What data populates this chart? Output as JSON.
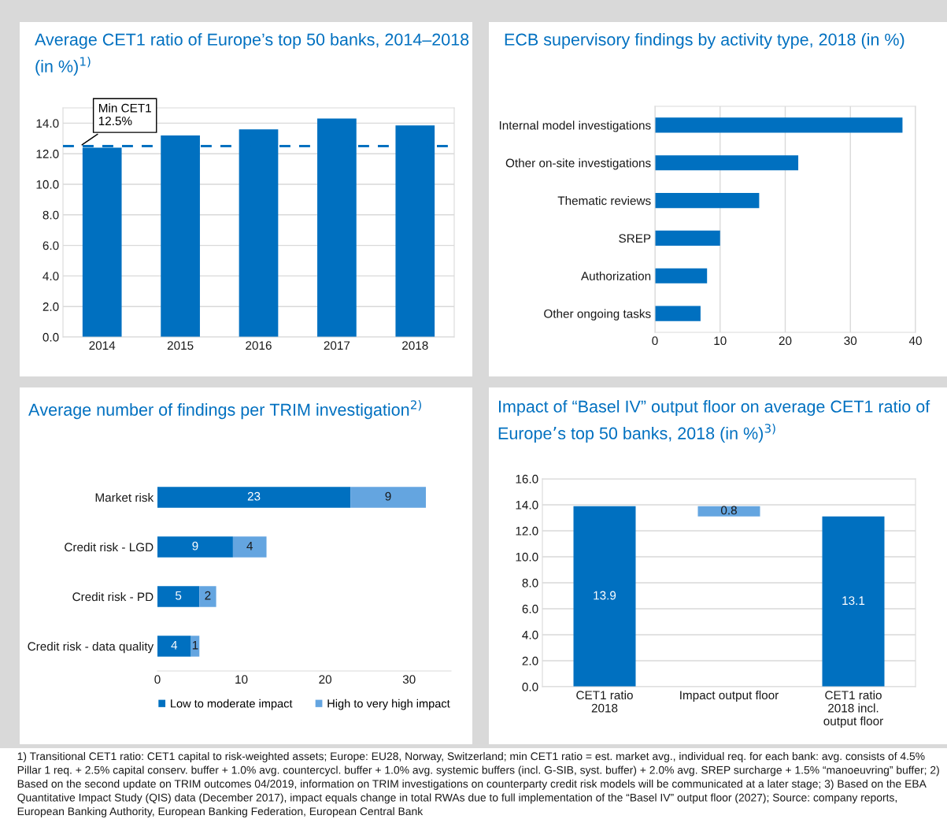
{
  "chart_data": [
    {
      "type": "bar",
      "title": "Average CET1 ratio of Europe’s top 50 banks, 2014–2018\n(in %)$^{1)}$",
      "categories": [
        "2014",
        "2015",
        "2016",
        "2017",
        "2018"
      ],
      "series": [
        {
          "color": "#0070c0",
          "values": [
            12.4,
            13.2,
            13.6,
            14.3,
            13.85
          ]
        }
      ],
      "ylim": [
        0,
        15
      ],
      "yticks": [
        {
          "value": 0,
          "label": "0.0"
        },
        {
          "value": 2,
          "label": "2.0"
        },
        {
          "value": 4,
          "label": "4.0"
        },
        {
          "value": 6,
          "label": "6.0"
        },
        {
          "value": 8,
          "label": "8.0"
        },
        {
          "value": 10,
          "label": "10.0"
        },
        {
          "value": 12,
          "label": "12.0"
        },
        {
          "value": 14,
          "label": "14.0"
        }
      ],
      "ref_lines": [
        {
          "axis": "y",
          "value": 12.5,
          "label": "Min CET1\n12.5%",
          "color": "#0070c0",
          "line_style": "dashed"
        }
      ],
      "grid": "y",
      "annotations": [
        "1) Transitional CET1 ratio: CET1 capital to risk-weighted assets; Europe: EU28, Norway, Switzerland; min CET1 ratio = est. market avg., individual req. for each bank: avg. consists of 4.5% Pillar 1 req. + 2.5% capital conserv. buffer + 1.0% avg. countercycl. buffer + 1.0% avg. systemic buffers (incl. G-SIB, syst. buffer) + 2.0% avg. SREP surcharge + 1.5% “manoeuvring” buffer; 2) Based on the second update on TRIM outcomes 04/2019, information on TRIM investigations on counterparty credit risk models will be communicated at a later stage; 3) Based on the EBA Quantitative Impact Study (QIS) data (December 2017), impact equals change in total RWAs due to full implementation of the “Basel IV” output floor (2027); Source: company reports, European Banking Authority, European Banking Federation, European Central Bank"
      ]
    },
    {
      "type": "bar",
      "orientation": "horizontal",
      "title": "ECB supervisory findings by activity type, 2018 (in %)",
      "categories": [
        "Internal model investigations",
        "Other on-site investigations",
        "Thematic reviews",
        "SREP",
        "Authorization",
        "Other ongoing tasks"
      ],
      "series": [
        {
          "color": "#0070c0",
          "values": [
            38,
            22,
            16,
            10,
            8,
            7
          ]
        }
      ],
      "xlim": [
        0,
        40
      ],
      "xticks": [
        0,
        10,
        20,
        30,
        40
      ],
      "grid": "x"
    },
    {
      "type": "bar",
      "orientation": "horizontal",
      "stacked": true,
      "title": "Average number of findings per TRIM investigation$^{2)}$",
      "categories": [
        "Market risk",
        "Credit risk - LGD",
        "Credit risk - PD",
        "Credit risk - data quality"
      ],
      "series": [
        {
          "name": "Low to moderate impact",
          "color": "#0070c0",
          "values": [
            23,
            9,
            5,
            4
          ]
        },
        {
          "name": "High to very high impact",
          "color": "#64a5e0",
          "values": [
            9,
            4,
            2,
            1
          ]
        }
      ],
      "xlim": [
        0,
        35
      ],
      "xticks": [
        0,
        10,
        20,
        30
      ],
      "data_labels": true,
      "legend": "bottom"
    },
    {
      "type": "bar",
      "title": "Impact of “Basel IV” output floor on average CET1 ratio of\nEurope’s top 50 banks, 2018 (in %)$^{3)}$",
      "categories": [
        "CET1 ratio\n2018",
        "Impact output floor",
        "CET1 ratio\n2018 incl.\noutput floor"
      ],
      "series": [
        {
          "colors": [
            "#0070c0",
            "#64a5e0",
            "#0070c0"
          ],
          "values": [
            13.9,
            0.8,
            13.1
          ],
          "base": [
            0,
            13.1,
            0
          ]
        }
      ],
      "ylim": [
        0,
        16
      ],
      "yticks": [
        {
          "value": 0,
          "label": "0.0"
        },
        {
          "value": 2,
          "label": "2.0"
        },
        {
          "value": 4,
          "label": "4.0"
        },
        {
          "value": 6,
          "label": "6.0"
        },
        {
          "value": 8,
          "label": "8.0"
        },
        {
          "value": 10,
          "label": "10.0"
        },
        {
          "value": 12,
          "label": "12.0"
        },
        {
          "value": 14,
          "label": "14.0"
        },
        {
          "value": 16,
          "label": "16.0"
        }
      ],
      "grid": "y",
      "data_labels": true
    }
  ]
}
